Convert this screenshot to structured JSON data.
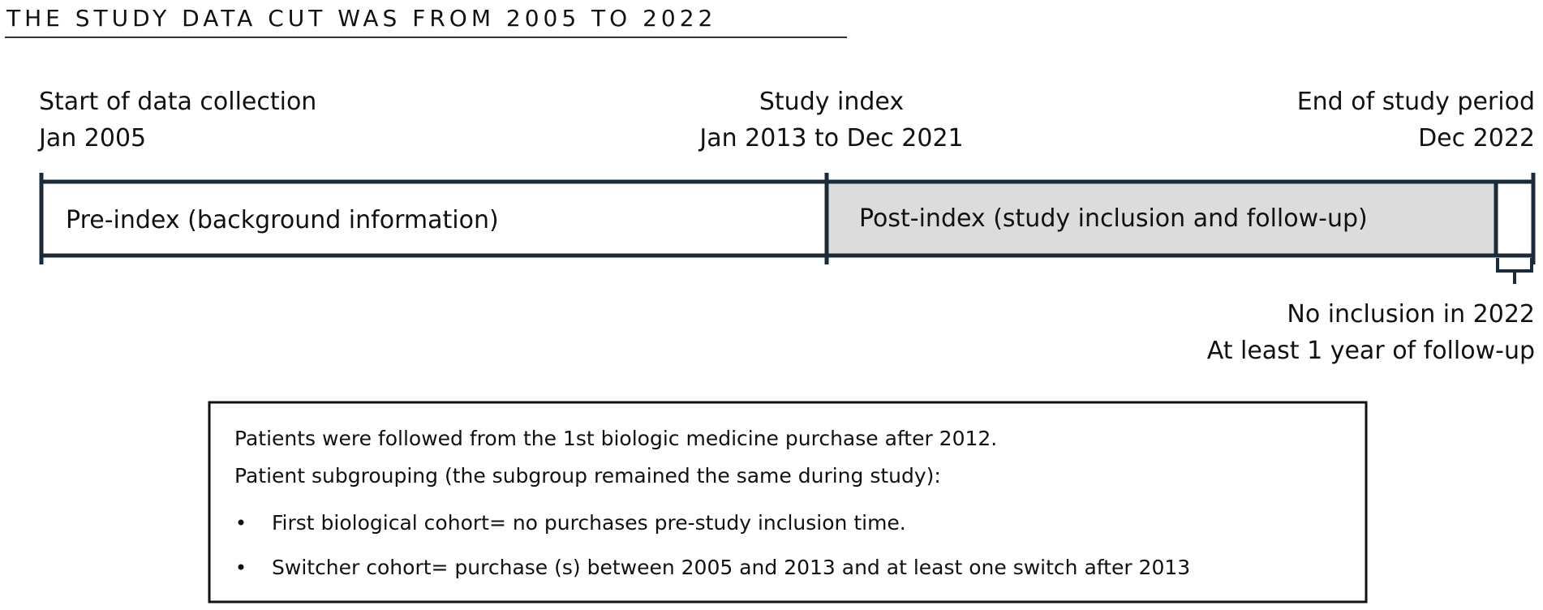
{
  "header": {
    "title": "THE STUDY DATA CUT WAS FROM 2005 TO 2022"
  },
  "timeline": {
    "start": {
      "label": "Start of data collection",
      "date": "Jan 2005"
    },
    "index": {
      "label": "Study index",
      "date": "Jan 2013 to Dec 2021"
    },
    "end": {
      "label": "End of study period",
      "date": "Dec 2022"
    },
    "pre_period": "Pre-index (background information)",
    "post_period": "Post-index (study inclusion and follow-up)",
    "end_note": [
      "No inclusion in 2022",
      "At least 1 year of follow-up"
    ]
  },
  "note": {
    "lines": [
      "Patients were followed from the 1st biologic medicine purchase after 2012.",
      "Patient subgrouping (the subgroup remained the same during study):"
    ],
    "bullets": [
      "First biological cohort= no purchases pre-study inclusion time.",
      "Switcher cohort= purchase (s) between 2005 and 2013 and at least one switch after 2013"
    ]
  }
}
